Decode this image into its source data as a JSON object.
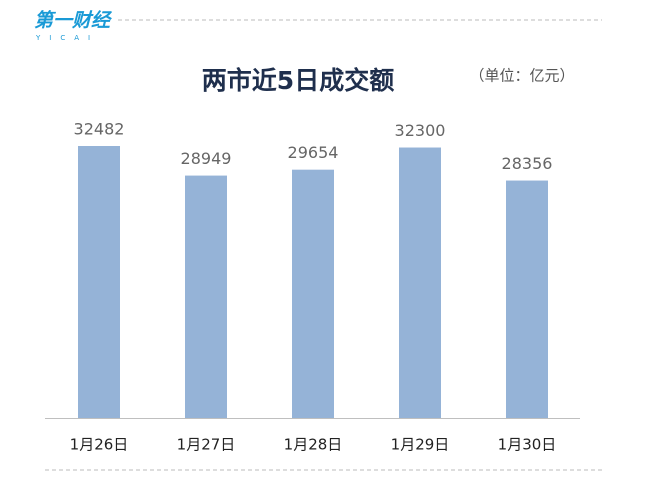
{
  "logo": "第一财经",
  "logo_sub": "YICAI",
  "chart_data": {
    "type": "bar",
    "title": "两市近5日成交额",
    "unit": "（单位：亿元）",
    "categories": [
      "1月26日",
      "1月27日",
      "1月28日",
      "1月29日",
      "1月30日"
    ],
    "values": [
      32482,
      28949,
      29654,
      32300,
      28356
    ],
    "color": "#95b3d7"
  }
}
